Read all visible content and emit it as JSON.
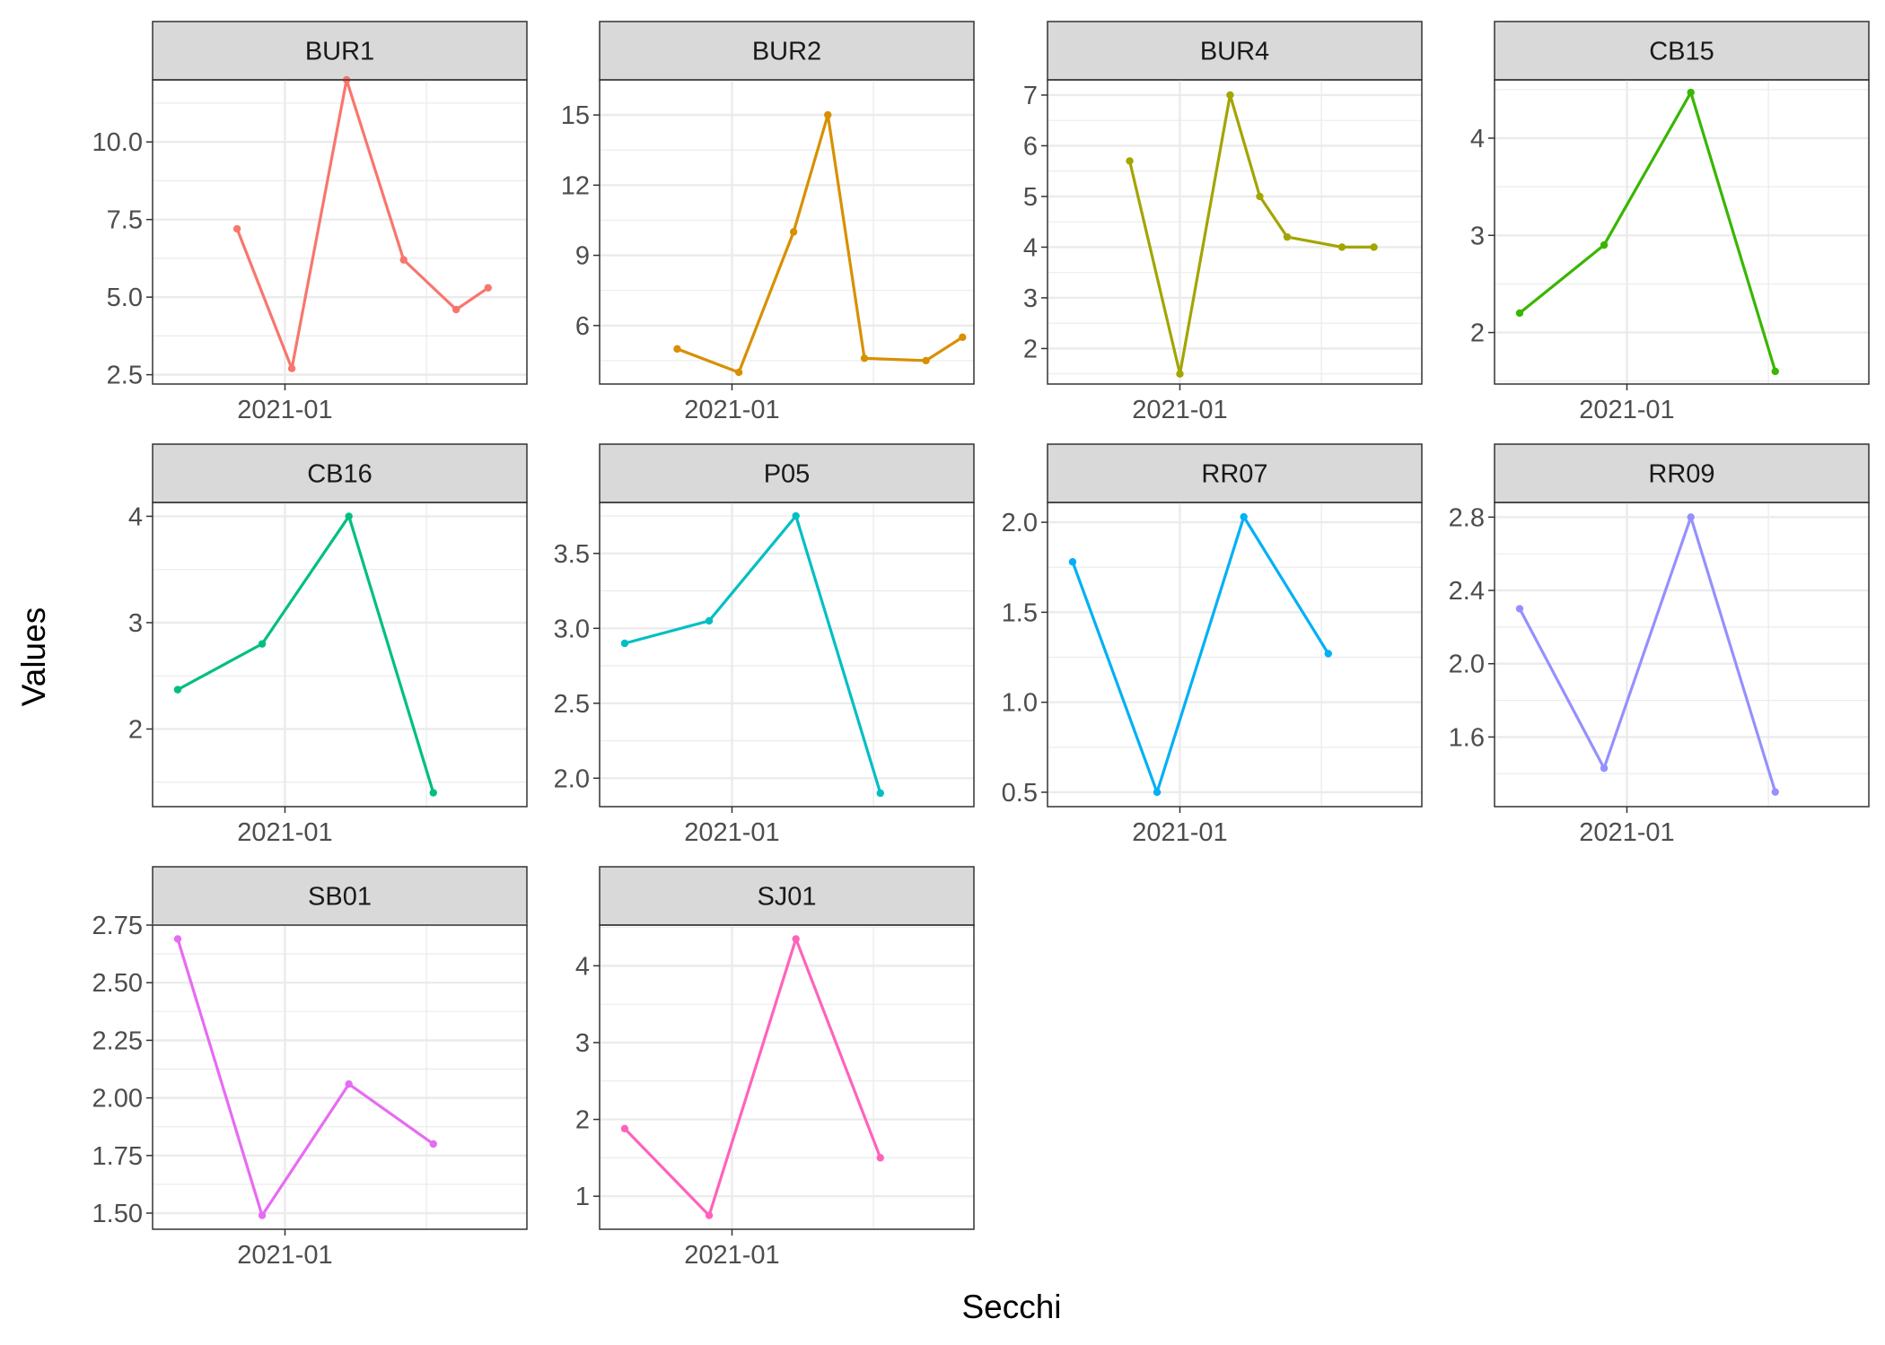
{
  "chart_data": {
    "type": "line",
    "layout": "faceted small multiples, 4 columns, free y scales",
    "xlabel": "Secchi",
    "ylabel": "Values",
    "x_tick_label": "2021-01",
    "grid": true,
    "legend": "none",
    "panels": [
      {
        "name": "BUR1",
        "color": "#F8766D",
        "x": [
          "2020-12-11",
          "2021-01-04",
          "2021-01-28",
          "2021-02-22",
          "2021-03-17",
          "2021-03-31"
        ],
        "y": [
          7.2,
          2.7,
          12.0,
          6.2,
          4.6,
          5.3
        ],
        "ylim": [
          2.2,
          12.0
        ],
        "yticks": [
          2.5,
          5.0,
          7.5,
          10.0
        ],
        "ytick_labels": [
          "2.5",
          "5.0",
          "7.5",
          "10.0"
        ]
      },
      {
        "name": "BUR2",
        "color": "#D89000",
        "x": [
          "2020-12-08",
          "2021-01-04",
          "2021-01-28",
          "2021-02-12",
          "2021-02-28",
          "2021-03-27",
          "2021-04-12"
        ],
        "y": [
          5.0,
          4.0,
          10.0,
          15.0,
          4.6,
          4.5,
          5.5
        ],
        "ylim": [
          3.5,
          16.5
        ],
        "yticks": [
          6,
          9,
          12,
          15
        ],
        "ytick_labels": [
          "6",
          "9",
          "12",
          "15"
        ]
      },
      {
        "name": "BUR4",
        "color": "#A3A500",
        "x": [
          "2020-12-10",
          "2021-01-01",
          "2021-01-23",
          "2021-02-05",
          "2021-02-17",
          "2021-03-13",
          "2021-03-27"
        ],
        "y": [
          5.7,
          1.5,
          7.0,
          5.0,
          4.2,
          4.0,
          4.0
        ],
        "ylim": [
          1.3,
          7.3
        ],
        "yticks": [
          2,
          3,
          4,
          5,
          6,
          7
        ],
        "ytick_labels": [
          "2",
          "3",
          "4",
          "5",
          "6",
          "7"
        ]
      },
      {
        "name": "CB15",
        "color": "#39B600",
        "x": [
          "2020-11-15",
          "2020-12-22",
          "2021-01-29",
          "2021-03-07"
        ],
        "y": [
          2.2,
          2.9,
          4.47,
          1.6
        ],
        "ylim": [
          1.47,
          4.6
        ],
        "yticks": [
          2,
          3,
          4
        ],
        "ytick_labels": [
          "2",
          "3",
          "4"
        ]
      },
      {
        "name": "CB16",
        "color": "#00BF7D",
        "x": [
          "2020-11-15",
          "2020-12-22",
          "2021-01-29",
          "2021-03-07"
        ],
        "y": [
          2.37,
          2.8,
          4.0,
          1.4
        ],
        "ylim": [
          1.27,
          4.13
        ],
        "yticks": [
          2,
          3,
          4
        ],
        "ytick_labels": [
          "2",
          "3",
          "4"
        ]
      },
      {
        "name": "P05",
        "color": "#00BFC4",
        "x": [
          "2020-11-15",
          "2020-12-22",
          "2021-01-29",
          "2021-03-07"
        ],
        "y": [
          2.9,
          3.05,
          3.75,
          1.9
        ],
        "ylim": [
          1.81,
          3.84
        ],
        "yticks": [
          2.0,
          2.5,
          3.0,
          3.5
        ],
        "ytick_labels": [
          "2.0",
          "2.5",
          "3.0",
          "3.5"
        ]
      },
      {
        "name": "RR07",
        "color": "#00B0F6",
        "x": [
          "2020-11-15",
          "2020-12-22",
          "2021-01-29",
          "2021-03-07"
        ],
        "y": [
          1.78,
          0.5,
          2.03,
          1.27
        ],
        "ylim": [
          0.42,
          2.11
        ],
        "yticks": [
          0.5,
          1.0,
          1.5,
          2.0
        ],
        "ytick_labels": [
          "0.5",
          "1.0",
          "1.5",
          "2.0"
        ]
      },
      {
        "name": "RR09",
        "color": "#9590FF",
        "x": [
          "2020-11-15",
          "2020-12-22",
          "2021-01-29",
          "2021-03-07"
        ],
        "y": [
          2.3,
          1.43,
          2.8,
          1.3
        ],
        "ylim": [
          1.22,
          2.88
        ],
        "yticks": [
          1.6,
          2.0,
          2.4,
          2.8
        ],
        "ytick_labels": [
          "1.6",
          "2.0",
          "2.4",
          "2.8"
        ]
      },
      {
        "name": "SB01",
        "color": "#E76BF3",
        "x": [
          "2020-11-15",
          "2020-12-22",
          "2021-01-29",
          "2021-03-07"
        ],
        "y": [
          2.69,
          1.49,
          2.06,
          1.8
        ],
        "ylim": [
          1.43,
          2.75
        ],
        "yticks": [
          1.5,
          1.75,
          2.0,
          2.25,
          2.5,
          2.75
        ],
        "ytick_labels": [
          "1.50",
          "1.75",
          "2.00",
          "2.25",
          "2.50",
          "2.75"
        ]
      },
      {
        "name": "SJ01",
        "color": "#FF62BC",
        "x": [
          "2020-11-15",
          "2020-12-22",
          "2021-01-29",
          "2021-03-07"
        ],
        "y": [
          1.88,
          0.75,
          4.35,
          1.5
        ],
        "ylim": [
          0.57,
          4.53
        ],
        "yticks": [
          1,
          2,
          3,
          4
        ],
        "ytick_labels": [
          "1",
          "2",
          "3",
          "4"
        ]
      }
    ]
  }
}
